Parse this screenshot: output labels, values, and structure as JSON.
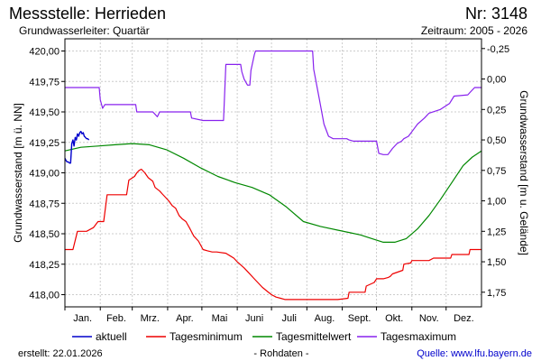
{
  "header": {
    "title": "Messstelle: Herrieden",
    "station_no": "Nr: 3148",
    "aquifer": "Grundwasserleiter: Quartär",
    "period": "Zeitraum: 2005 - 2026"
  },
  "footer": {
    "created": "erstellt:  22.01.2026",
    "raw_note": "- Rohdaten -",
    "source": "Quelle: www.lfu.bayern.de"
  },
  "colors": {
    "aktuell": "#0000cc",
    "minimum": "#ee0000",
    "mittel": "#008800",
    "maximum": "#8822ee",
    "grid": "#cccccc",
    "frame": "#000000"
  },
  "chart_data": {
    "type": "line",
    "xlabel": "",
    "ylabel": "Grundwasserstand [m ü. NN]",
    "ylabel_right": "Grundwasserstand [m u. Gelände]",
    "ylim": [
      417.9,
      420.1
    ],
    "y2lim": [
      1.87,
      -0.33
    ],
    "y_ticks": [
      418.0,
      418.25,
      418.5,
      418.75,
      419.0,
      419.25,
      419.5,
      419.75,
      420.0
    ],
    "y_tick_labels": [
      "418,00",
      "418,25",
      "418,50",
      "418,75",
      "419,00",
      "419,25",
      "419,50",
      "419,75",
      "420,00"
    ],
    "y2_ticks": [
      -0.25,
      0.0,
      0.25,
      0.5,
      0.75,
      1.0,
      1.25,
      1.5,
      1.75
    ],
    "y2_tick_labels": [
      "-0,25",
      "0,00",
      "0,25",
      "0,50",
      "0,75",
      "1,00",
      "1,25",
      "1,50",
      "1,75"
    ],
    "months": [
      "Jan.",
      "Feb.",
      "Mrz.",
      "Apr.",
      "Mai",
      "Juni",
      "Juli",
      "Aug.",
      "Sept.",
      "Okt.",
      "Nov.",
      "Dez."
    ],
    "x_unit": "day of year",
    "xlim": [
      1,
      366
    ],
    "grid": true,
    "legend_position": "bottom",
    "series": [
      {
        "name": "aktuell",
        "color_key": "aktuell",
        "x": [
          1,
          2,
          3,
          4,
          5,
          6,
          7,
          8,
          9,
          10,
          11,
          12,
          13,
          14,
          15,
          16,
          17,
          18,
          19,
          20,
          21,
          22
        ],
        "y": [
          419.12,
          419.1,
          419.09,
          419.09,
          419.08,
          419.08,
          419.24,
          419.27,
          419.22,
          419.29,
          419.27,
          419.32,
          419.3,
          419.33,
          419.34,
          419.32,
          419.33,
          419.3,
          419.29,
          419.28,
          419.28,
          419.27
        ]
      },
      {
        "name": "Tagesminimum",
        "color_key": "minimum",
        "x": [
          1,
          8,
          12,
          20,
          26,
          30,
          35,
          38,
          40,
          42,
          55,
          57,
          62,
          64,
          66,
          68,
          71,
          74,
          78,
          80,
          84,
          86,
          89,
          92,
          95,
          98,
          101,
          104,
          107,
          110,
          114,
          118,
          122,
          126,
          130,
          134,
          142,
          149,
          152,
          158,
          162,
          166,
          170,
          174,
          178,
          182,
          186,
          190,
          194,
          198,
          202,
          206,
          210,
          214,
          224,
          240,
          249,
          250,
          264,
          265,
          272,
          274,
          280,
          284,
          286,
          288,
          297,
          298,
          304,
          305,
          320,
          324,
          339,
          340,
          355,
          356,
          366
        ],
        "y": [
          418.37,
          418.37,
          418.52,
          418.52,
          418.55,
          418.6,
          418.6,
          418.82,
          418.82,
          418.82,
          418.82,
          418.94,
          418.97,
          419.0,
          419.02,
          419.03,
          419.0,
          418.96,
          418.93,
          418.88,
          418.85,
          418.83,
          418.8,
          418.77,
          418.73,
          418.71,
          418.65,
          418.62,
          418.6,
          418.55,
          418.48,
          418.44,
          418.37,
          418.36,
          418.35,
          418.35,
          418.34,
          418.3,
          418.27,
          418.22,
          418.18,
          418.14,
          418.1,
          418.06,
          418.03,
          418.0,
          417.98,
          417.97,
          417.96,
          417.96,
          417.96,
          417.96,
          417.96,
          417.96,
          417.96,
          417.96,
          417.97,
          418.02,
          418.02,
          418.07,
          418.1,
          418.13,
          418.13,
          418.14,
          418.15,
          418.17,
          418.2,
          418.25,
          418.26,
          418.28,
          418.28,
          418.3,
          418.3,
          418.33,
          418.33,
          418.37,
          418.37
        ]
      },
      {
        "name": "Tagesmittelwert",
        "color_key": "mittel",
        "x": [
          1,
          15,
          30,
          45,
          60,
          75,
          90,
          105,
          120,
          135,
          150,
          165,
          180,
          195,
          210,
          225,
          240,
          250,
          260,
          270,
          280,
          290,
          300,
          310,
          320,
          330,
          340,
          350,
          358,
          366
        ],
        "y": [
          419.18,
          419.21,
          419.22,
          419.23,
          419.24,
          419.23,
          419.19,
          419.12,
          419.04,
          418.97,
          418.92,
          418.88,
          418.82,
          418.72,
          418.6,
          418.56,
          418.53,
          418.51,
          418.49,
          418.46,
          418.43,
          418.43,
          418.46,
          418.54,
          418.65,
          418.78,
          418.92,
          419.06,
          419.13,
          419.18
        ]
      },
      {
        "name": "Tagesmaximum",
        "color_key": "maximum",
        "x": [
          1,
          31,
          32,
          34,
          36,
          63,
          64,
          78,
          80,
          82,
          84,
          111,
          112,
          122,
          124,
          140,
          142,
          155,
          156,
          158,
          161,
          163,
          164,
          167,
          168,
          170,
          172,
          174,
          176,
          198,
          205,
          218,
          219,
          224,
          228,
          232,
          236,
          242,
          244,
          246,
          248,
          250,
          254,
          264,
          266,
          274,
          276,
          280,
          284,
          288,
          292,
          296,
          298,
          302,
          306,
          310,
          316,
          320,
          330,
          338,
          342,
          354,
          356,
          360,
          366
        ],
        "y": [
          419.7,
          419.7,
          419.6,
          419.53,
          419.56,
          419.56,
          419.5,
          419.5,
          419.48,
          419.46,
          419.5,
          419.5,
          419.45,
          419.43,
          419.43,
          419.43,
          419.89,
          419.89,
          419.83,
          419.77,
          419.72,
          419.72,
          419.84,
          419.97,
          420.0,
          420.0,
          420.0,
          420.0,
          420.0,
          420.0,
          420.0,
          420.0,
          419.85,
          419.6,
          419.4,
          419.3,
          419.28,
          419.28,
          419.28,
          419.28,
          419.28,
          419.27,
          419.26,
          419.26,
          419.26,
          419.26,
          419.16,
          419.15,
          419.15,
          419.2,
          419.24,
          419.26,
          419.28,
          419.3,
          419.35,
          419.4,
          419.45,
          419.49,
          419.52,
          419.57,
          419.63,
          419.64,
          419.66,
          419.7,
          419.7
        ]
      }
    ]
  }
}
